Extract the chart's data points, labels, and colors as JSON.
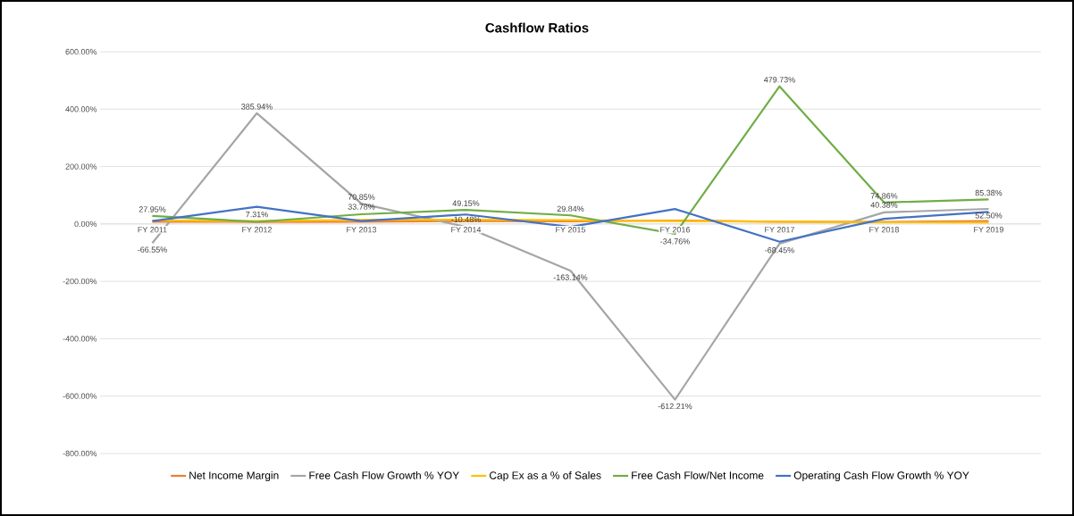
{
  "chart_data": {
    "type": "line",
    "title": "Cashflow Ratios",
    "categories": [
      "FY 2011",
      "FY 2012",
      "FY 2013",
      "FY 2014",
      "FY 2015",
      "FY 2016",
      "FY 2017",
      "FY 2018",
      "FY 2019"
    ],
    "series": [
      {
        "name": "Net Income Margin",
        "color": "#ed7d31",
        "values": [
          8,
          7,
          8,
          10,
          9,
          12,
          8,
          7,
          10
        ]
      },
      {
        "name": "Free Cash Flow Growth % YOY",
        "color": "#a5a5a5",
        "values": [
          -66.55,
          385.94,
          70.85,
          -10.48,
          -163.14,
          -612.21,
          -68.45,
          40.38,
          52.5
        ],
        "value_labels": [
          "-66.55%",
          "385.94%",
          "70.85%",
          "-10.48%",
          "-163.14%",
          "-612.21%",
          "-68.45%",
          "40.38%",
          "52.50%"
        ]
      },
      {
        "name": "Cap Ex as a % of Sales",
        "color": "#ffc000",
        "values": [
          12,
          10,
          14,
          15,
          13,
          10,
          8,
          6,
          5
        ]
      },
      {
        "name": "Free Cash Flow/Net Income",
        "color": "#70ad47",
        "values": [
          27.95,
          7.31,
          33.78,
          49.15,
          29.84,
          -34.76,
          479.73,
          74.86,
          85.38
        ],
        "value_labels": [
          "27.95%",
          "7.31%",
          "33.78%",
          "49.15%",
          "29.84%",
          "-34.76%",
          "479.73%",
          "74.86%",
          "85.38%"
        ]
      },
      {
        "name": "Operating Cash Flow Growth % YOY",
        "color": "#4472c4",
        "values": [
          10,
          60,
          10,
          33,
          -10,
          52,
          -62,
          18,
          42
        ]
      }
    ],
    "ylim": [
      -800,
      600
    ],
    "yticks": [
      {
        "value": -800,
        "label": "-800.00%"
      },
      {
        "value": -600,
        "label": "-600.00%"
      },
      {
        "value": -400,
        "label": "-400.00%"
      },
      {
        "value": -200,
        "label": "-200.00%"
      },
      {
        "value": 0,
        "label": "0.00%"
      },
      {
        "value": 200,
        "label": "200.00%"
      },
      {
        "value": 400,
        "label": "400.00%"
      },
      {
        "value": 600,
        "label": "600.00%"
      }
    ],
    "grid": "y",
    "legend": "bottom",
    "line_style": "solid"
  }
}
